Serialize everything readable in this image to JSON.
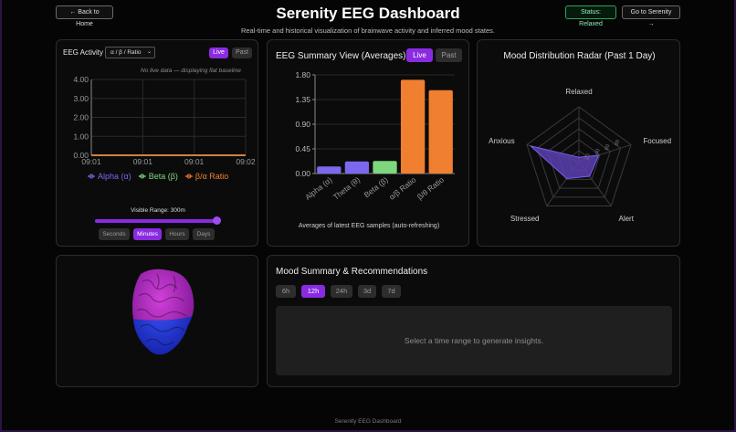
{
  "header": {
    "back_label": "← Back to Home",
    "title": "Serenity EEG Dashboard",
    "subtitle": "Real-time and historical visualization of brainwave activity and inferred mood states.",
    "status_label": "Status: Relaxed",
    "goto_label": "Go to Serenity →"
  },
  "activity": {
    "title": "EEG Activity",
    "metric_selected": "α / β / Ratio",
    "live_label": "Live",
    "past_label": "Past",
    "note": "No live data — displaying flat baseline",
    "range_label": "Visible Range: 300m",
    "range_fraction": 1.0,
    "units": [
      "Seconds",
      "Minutes",
      "Hours",
      "Days"
    ],
    "units_active": "Minutes"
  },
  "summary": {
    "title": "EEG Summary View (Averages)",
    "live_label": "Live",
    "past_label": "Past",
    "caption": "Averages of latest EEG samples (auto-refreshing)"
  },
  "radar": {
    "title": "Mood Distribution Radar (Past 1 Day)"
  },
  "mood": {
    "title": "Mood Summary & Recommendations",
    "ranges": [
      "6h",
      "12h",
      "24h",
      "3d",
      "7d"
    ],
    "range_active": "12h",
    "insight_placeholder": "Select a time range to generate insights."
  },
  "footer": "Serenity EEG Dashboard",
  "colors": {
    "accent": "#8a2be2",
    "alpha": "#7b68ee",
    "beta": "#7dd87d",
    "ratio": "#f07f2f",
    "radar_fill": "#5a3fb0"
  },
  "chart_data": [
    {
      "type": "line",
      "x": [
        "09:01",
        "09:01",
        "09:01",
        "09:02"
      ],
      "ylim": [
        0,
        4
      ],
      "yticks": [
        "0.00",
        "1.00",
        "2.00",
        "3.00",
        "4.00"
      ],
      "series": [
        {
          "name": "Alpha (α)",
          "values": [
            0,
            0,
            0,
            0
          ]
        },
        {
          "name": "Beta (β)",
          "values": [
            0,
            0,
            0,
            0
          ]
        },
        {
          "name": "β/α Ratio",
          "values": [
            0,
            0,
            0,
            0
          ]
        }
      ],
      "legend": "bottom"
    },
    {
      "type": "bar",
      "categories": [
        "Alpha (α)",
        "Theta (θ)",
        "Beta (β)",
        "α/β Ratio",
        "β/θ Ratio"
      ],
      "values": [
        0.13,
        0.22,
        0.23,
        1.71,
        1.52
      ],
      "colors": [
        "#7b68ee",
        "#7b68ee",
        "#7dd87d",
        "#f07f2f",
        "#f07f2f"
      ],
      "ylim": [
        0,
        1.8
      ],
      "yticks": [
        "0.00",
        "0.45",
        "0.90",
        "1.35",
        "1.80"
      ]
    },
    {
      "type": "radar",
      "categories": [
        "Relaxed",
        "Focused",
        "Alert",
        "Stressed",
        "Anxious"
      ],
      "values": [
        0.08,
        0.38,
        0.33,
        0.38,
        0.93
      ],
      "max": 100,
      "rticks": [
        "20",
        "40",
        "60",
        "80"
      ]
    }
  ]
}
